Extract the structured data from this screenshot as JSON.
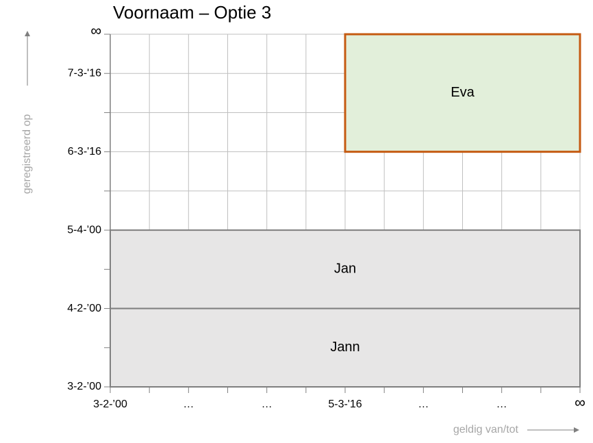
{
  "title": "Voornaam – Optie 3",
  "y_axis_label": "geregistreerd op",
  "x_axis_label": "geldig van/tot",
  "y_labels": [
    "∞",
    "7-3-'16",
    "6-3-'16",
    "5-4-’00",
    "4-2-’00",
    "3-2-’00"
  ],
  "x_labels": [
    "3-2-’00",
    "…",
    "…",
    "5-3-'16",
    "…",
    "…",
    "∞"
  ],
  "records": [
    {
      "label": "Eva"
    },
    {
      "label": "Jan"
    },
    {
      "label": "Jann"
    }
  ]
}
